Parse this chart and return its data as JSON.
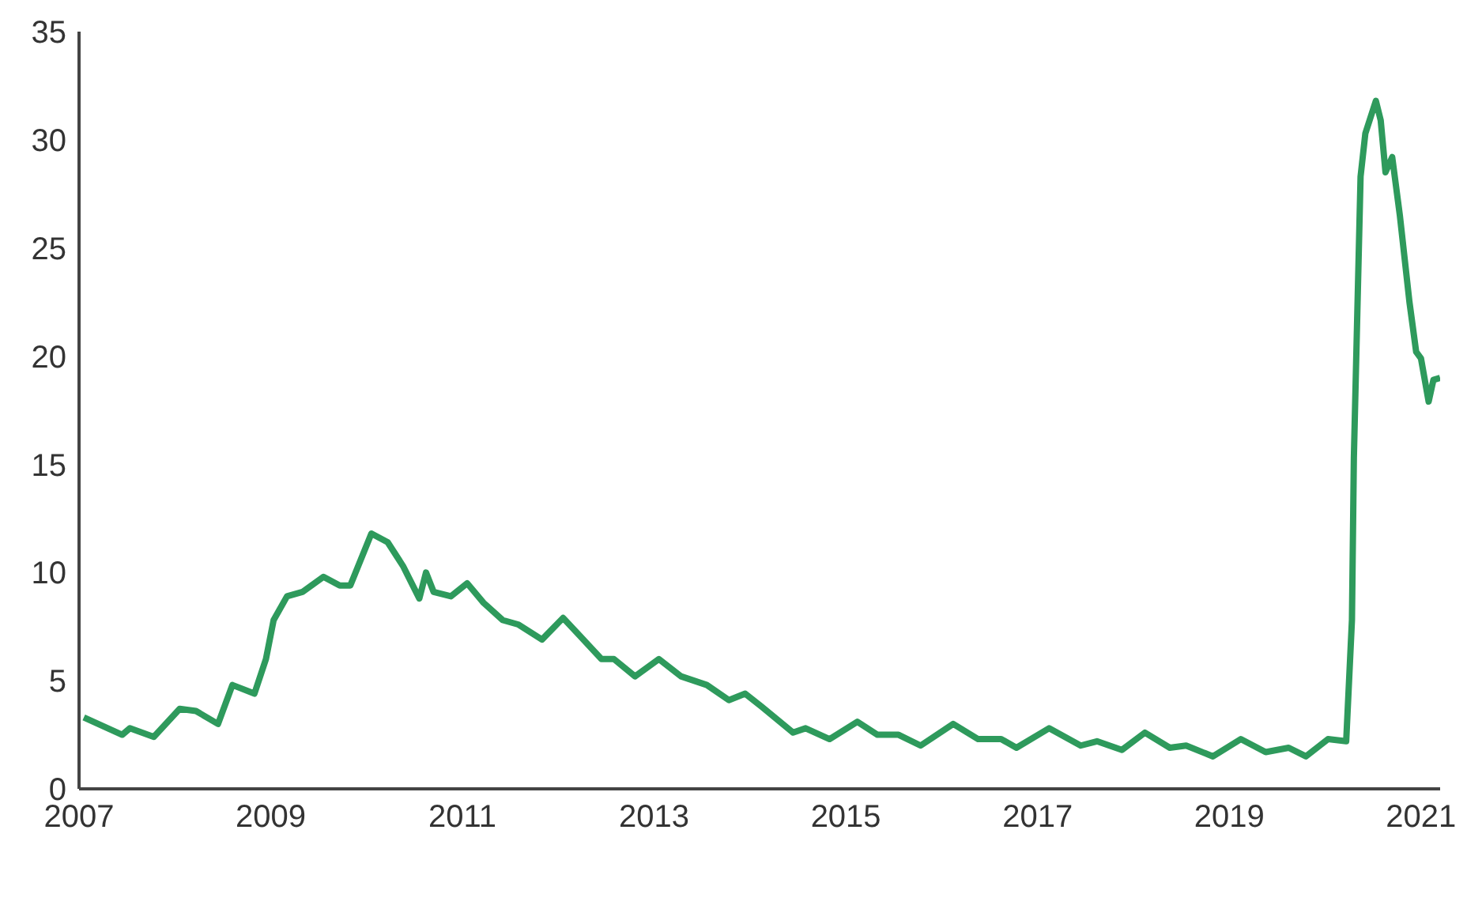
{
  "chart_data": {
    "type": "line",
    "xlim": [
      2007,
      2021.2
    ],
    "xticks": [
      2007,
      2009,
      2011,
      2013,
      2015,
      2017,
      2019,
      2021
    ],
    "ylim": [
      0,
      35
    ],
    "yticks": [
      0,
      5,
      10,
      15,
      20,
      25,
      30,
      35
    ],
    "grid": false,
    "legend": false,
    "marker": "none",
    "line_style": "solid",
    "series": [
      {
        "color": "#2e9a5c",
        "x": [
          2007.05,
          2007.45,
          2007.53,
          2007.78,
          2008.05,
          2008.22,
          2008.45,
          2008.6,
          2008.83,
          2008.95,
          2009.03,
          2009.17,
          2009.33,
          2009.55,
          2009.72,
          2009.83,
          2010.05,
          2010.22,
          2010.38,
          2010.55,
          2010.62,
          2010.7,
          2010.88,
          2011.05,
          2011.22,
          2011.42,
          2011.58,
          2011.83,
          2012.05,
          2012.22,
          2012.45,
          2012.58,
          2012.8,
          2013.05,
          2013.28,
          2013.55,
          2013.78,
          2013.95,
          2014.12,
          2014.45,
          2014.58,
          2014.83,
          2015.12,
          2015.33,
          2015.55,
          2015.78,
          2016.12,
          2016.38,
          2016.62,
          2016.78,
          2017.12,
          2017.45,
          2017.62,
          2017.88,
          2018.12,
          2018.38,
          2018.55,
          2018.83,
          2019.12,
          2019.38,
          2019.62,
          2019.8,
          2020.03,
          2020.22,
          2020.28,
          2020.3,
          2020.37,
          2020.42,
          2020.53,
          2020.58,
          2020.63,
          2020.7,
          2020.78,
          2020.88,
          2020.95,
          2021.0,
          2021.08,
          2021.13,
          2021.2
        ],
        "values": [
          3.3,
          2.5,
          2.8,
          2.4,
          3.7,
          3.6,
          3.0,
          4.8,
          4.4,
          6.0,
          7.8,
          8.9,
          9.1,
          9.8,
          9.4,
          9.4,
          11.8,
          11.4,
          10.3,
          8.8,
          10.0,
          9.1,
          8.9,
          9.5,
          8.6,
          7.8,
          7.6,
          6.9,
          7.9,
          7.1,
          6.0,
          6.0,
          5.2,
          6.0,
          5.2,
          4.8,
          4.1,
          4.4,
          3.8,
          2.6,
          2.8,
          2.3,
          3.1,
          2.5,
          2.5,
          2.0,
          3.0,
          2.3,
          2.3,
          1.9,
          2.8,
          2.0,
          2.2,
          1.8,
          2.6,
          1.9,
          2.0,
          1.5,
          2.3,
          1.7,
          1.9,
          1.5,
          2.3,
          2.2,
          7.8,
          15.3,
          28.3,
          30.3,
          31.8,
          30.9,
          28.5,
          29.2,
          26.5,
          22.5,
          20.2,
          19.9,
          17.9,
          18.9,
          19.0
        ]
      }
    ]
  }
}
